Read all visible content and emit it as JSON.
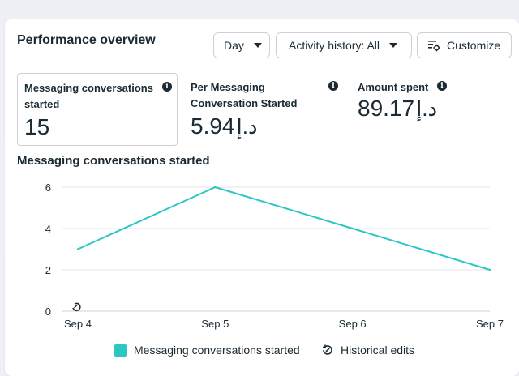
{
  "header": {
    "title": "Performance overview",
    "day_label": "Day",
    "activity_label": "Activity history: All",
    "customize_label": "Customize"
  },
  "metrics": [
    {
      "label": "Messaging conversations started",
      "value": "15",
      "currency": ""
    },
    {
      "label": "Per Messaging Conversation Started",
      "value": "5.94",
      "currency": "د.إ"
    },
    {
      "label": "Amount spent",
      "value": "89.17",
      "currency": "د.إ"
    }
  ],
  "colors": {
    "accent": "#2dc7c2",
    "grid": "#e4e6eb",
    "text": "#1c2b33"
  },
  "icons": [
    "info-icon",
    "chevron-down-icon",
    "customize-icon",
    "historical-edits-icon"
  ],
  "chart_data": {
    "type": "line",
    "title": "Messaging conversations started",
    "categories": [
      "Sep 4",
      "Sep 5",
      "Sep 6",
      "Sep 7"
    ],
    "series": [
      {
        "name": "Messaging conversations started",
        "values": [
          3,
          6,
          4,
          2
        ]
      }
    ],
    "yticks": [
      "0",
      "2",
      "4",
      "6"
    ],
    "ylim": [
      0,
      6
    ],
    "grid": true,
    "legend": "bottom"
  },
  "legend": {
    "series_label": "Messaging conversations started",
    "edits_label": "Historical edits"
  }
}
